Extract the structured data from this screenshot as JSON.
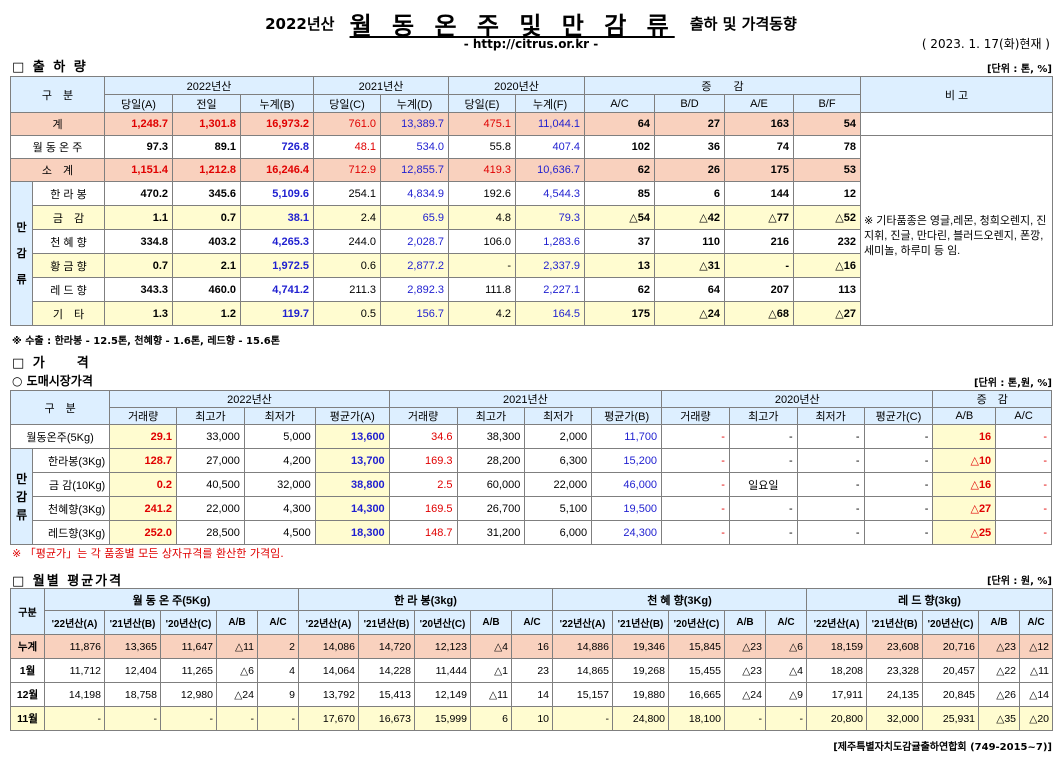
{
  "header": {
    "year": "2022년산",
    "main_title": "월 동 온 주 및 만 감 류",
    "sub_title": "출하 및 가격동향",
    "url": "- http://citrus.or.kr -",
    "date": "( 2023. 1. 17(화)현재 )"
  },
  "shipment": {
    "section_title": "□ 출 하 량",
    "unit": "[단위 : 톤, %]",
    "header": {
      "category": "구　분",
      "y2022": "2022년산",
      "y2021": "2021년산",
      "y2020": "2020년산",
      "change": "증　　감",
      "remark": "비 고",
      "cols": [
        "당일(A)",
        "전일",
        "누계(B)",
        "당일(C)",
        "누계(D)",
        "당일(E)",
        "누계(F)",
        "A/C",
        "B/D",
        "A/E",
        "B/F"
      ]
    },
    "group_label": "만 감 류",
    "rows": [
      {
        "label": "계",
        "v": [
          "1,248.7",
          "1,301.8",
          "16,973.2",
          "761.0",
          "13,389.7",
          "475.1",
          "11,044.1",
          "64",
          "27",
          "163",
          "54"
        ]
      },
      {
        "label": "월 동 온 주",
        "v": [
          "97.3",
          "89.1",
          "726.8",
          "48.1",
          "534.0",
          "55.8",
          "407.4",
          "102",
          "36",
          "74",
          "78"
        ]
      },
      {
        "label": "소　계",
        "v": [
          "1,151.4",
          "1,212.8",
          "16,246.4",
          "712.9",
          "12,855.7",
          "419.3",
          "10,636.7",
          "62",
          "26",
          "175",
          "53"
        ]
      },
      {
        "label": "한 라 봉",
        "v": [
          "470.2",
          "345.6",
          "5,109.6",
          "254.1",
          "4,834.9",
          "192.6",
          "4,544.3",
          "85",
          "6",
          "144",
          "12"
        ]
      },
      {
        "label": "금　감",
        "v": [
          "1.1",
          "0.7",
          "38.1",
          "2.4",
          "65.9",
          "4.8",
          "79.3",
          "△54",
          "△42",
          "△77",
          "△52"
        ]
      },
      {
        "label": "천 혜 향",
        "v": [
          "334.8",
          "403.2",
          "4,265.3",
          "244.0",
          "2,028.7",
          "106.0",
          "1,283.6",
          "37",
          "110",
          "216",
          "232"
        ]
      },
      {
        "label": "황 금 향",
        "v": [
          "0.7",
          "2.1",
          "1,972.5",
          "0.6",
          "2,877.2",
          "-",
          "2,337.9",
          "13",
          "△31",
          "-",
          "△16"
        ]
      },
      {
        "label": "레 드 향",
        "v": [
          "343.3",
          "460.0",
          "4,741.2",
          "211.3",
          "2,892.3",
          "111.8",
          "2,227.1",
          "62",
          "64",
          "207",
          "113"
        ]
      },
      {
        "label": "기　타",
        "v": [
          "1.3",
          "1.2",
          "119.7",
          "0.5",
          "156.7",
          "4.2",
          "164.5",
          "175",
          "△24",
          "△68",
          "△27"
        ]
      }
    ],
    "remark": "※ 기타품종은 영글,레몬, 청희오렌지, 진지휘, 진글, 만다린, 블러드오렌지, 폰깡,세미놀, 하루미 등 임.",
    "note": "※ 수출 : 한라봉 - 12.5톤, 천혜향 - 1.6톤, 레드향 - 15.6톤"
  },
  "price": {
    "section_title": "□ 가　　격",
    "subsection": "○ 도매시장가격",
    "unit": "[단위 : 톤,원, %]",
    "header": {
      "category": "구　분",
      "y2022": "2022년산",
      "y2021": "2021년산",
      "y2020": "2020년산",
      "change": "증　감",
      "cols": [
        "거래량",
        "최고가",
        "최저가",
        "평균가(A)",
        "거래량",
        "최고가",
        "최저가",
        "평균가(B)",
        "거래량",
        "최고가",
        "최저가",
        "평균가(C)",
        "A/B",
        "A/C"
      ]
    },
    "group_label": "만 감 류",
    "rows": [
      {
        "label": "월동온주(5Kg)",
        "v": [
          "29.1",
          "33,000",
          "5,000",
          "13,600",
          "34.6",
          "38,300",
          "2,000",
          "11,700",
          "-",
          "-",
          "-",
          "-",
          "16",
          "-"
        ]
      },
      {
        "label": "한라봉(3Kg)",
        "v": [
          "128.7",
          "27,000",
          "4,200",
          "13,700",
          "169.3",
          "28,200",
          "6,300",
          "15,200",
          "-",
          "-",
          "-",
          "-",
          "△10",
          "-"
        ]
      },
      {
        "label": "금 감(10Kg)",
        "v": [
          "0.2",
          "40,500",
          "32,000",
          "38,800",
          "2.5",
          "60,000",
          "22,000",
          "46,000",
          "-",
          "일요일",
          "-",
          "-",
          "△16",
          "-"
        ]
      },
      {
        "label": "천혜향(3Kg)",
        "v": [
          "241.2",
          "22,000",
          "4,300",
          "14,300",
          "169.5",
          "26,700",
          "5,100",
          "19,500",
          "-",
          "-",
          "-",
          "-",
          "△27",
          "-"
        ]
      },
      {
        "label": "레드향(3Kg)",
        "v": [
          "252.0",
          "28,500",
          "4,500",
          "18,300",
          "148.7",
          "31,200",
          "6,000",
          "24,300",
          "-",
          "-",
          "-",
          "-",
          "△25",
          "-"
        ]
      }
    ],
    "note": "※ 「평균가」는 각 품종별 모든 상자규격를 환산한 가격임."
  },
  "monthly": {
    "section_title": "□ 월별 평균가격",
    "unit": "[단위 : 원, %]",
    "header": {
      "category": "구분",
      "groups": [
        "월 동 온 주(5Kg)",
        "한 라 봉(3kg)",
        "천 혜 향(3Kg)",
        "레 드 향(3kg)"
      ],
      "cols": [
        "'22년산(A)",
        "'21년산(B)",
        "'20년산(C)",
        "A/B",
        "A/C"
      ]
    },
    "rows": [
      {
        "label": "누계",
        "v": [
          "11,876",
          "13,365",
          "11,647",
          "△11",
          "2",
          "14,086",
          "14,720",
          "12,123",
          "△4",
          "16",
          "14,886",
          "19,346",
          "15,845",
          "△23",
          "△6",
          "18,159",
          "23,608",
          "20,716",
          "△23",
          "△12"
        ]
      },
      {
        "label": "1월",
        "v": [
          "11,712",
          "12,404",
          "11,265",
          "△6",
          "4",
          "14,064",
          "14,228",
          "11,444",
          "△1",
          "23",
          "14,865",
          "19,268",
          "15,455",
          "△23",
          "△4",
          "18,208",
          "23,328",
          "20,457",
          "△22",
          "△11"
        ]
      },
      {
        "label": "12월",
        "v": [
          "14,198",
          "18,758",
          "12,980",
          "△24",
          "9",
          "13,792",
          "15,413",
          "12,149",
          "△11",
          "14",
          "15,157",
          "19,880",
          "16,665",
          "△24",
          "△9",
          "17,911",
          "24,135",
          "20,845",
          "△26",
          "△14"
        ]
      },
      {
        "label": "11월",
        "v": [
          "-",
          "-",
          "-",
          "-",
          "-",
          "17,670",
          "16,673",
          "15,999",
          "6",
          "10",
          "-",
          "24,800",
          "18,100",
          "-",
          "-",
          "20,800",
          "32,000",
          "25,931",
          "△35",
          "△20"
        ]
      }
    ]
  },
  "footer": "[제주특별자치도감귤출하연합회 (749-2015~7)]"
}
